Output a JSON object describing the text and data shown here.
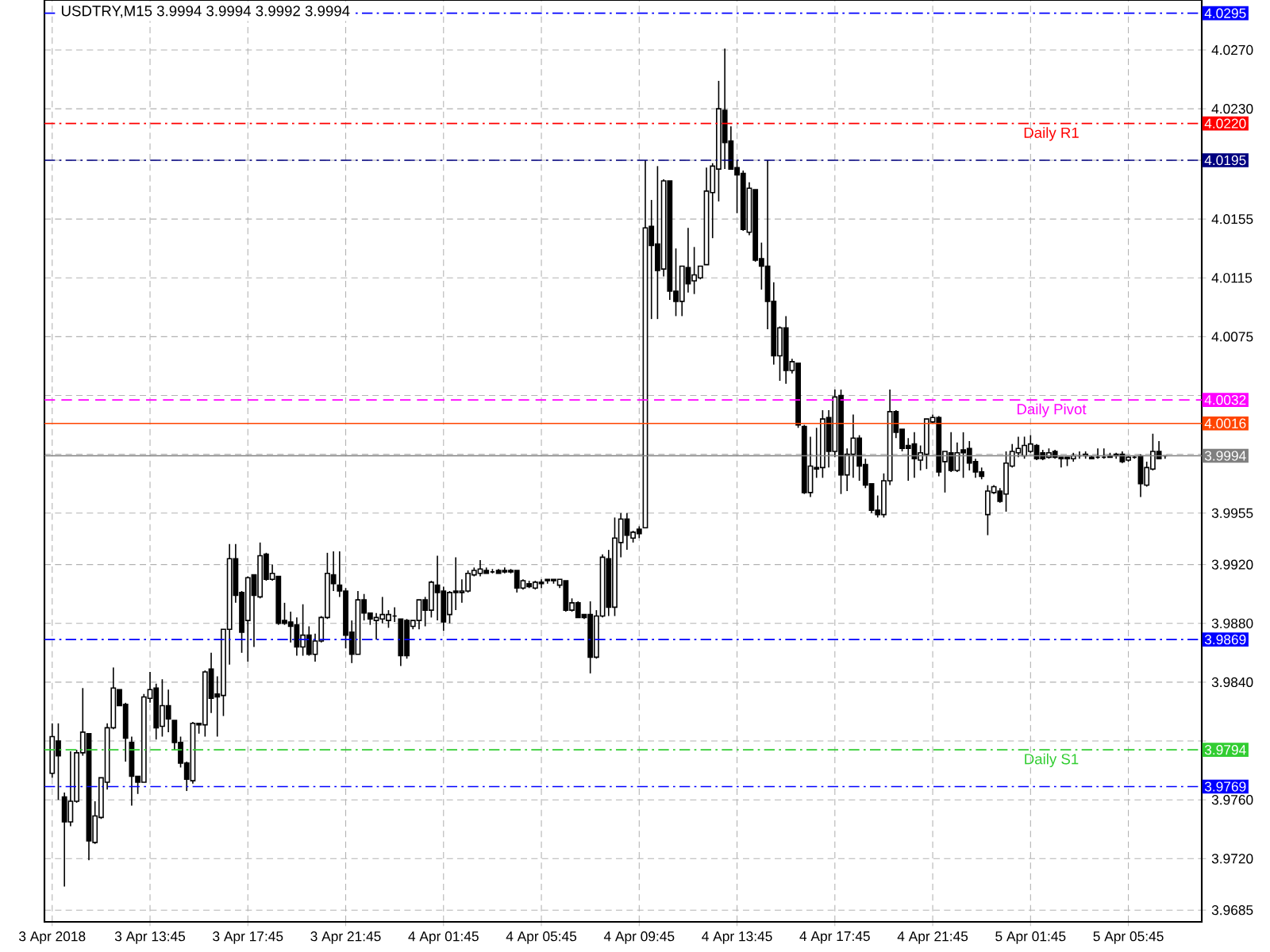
{
  "chart_data": {
    "type": "candlestick",
    "title": "USDTRY,M15  3.9994 3.9994 3.9992 3.9994",
    "x": [
      "2018-04-03T09:45",
      "2018-04-03T10:00",
      "2018-04-03T10:15",
      "2018-04-03T10:30",
      "2018-04-03T10:45",
      "2018-04-03T11:00",
      "2018-04-03T11:15",
      "2018-04-03T11:30",
      "2018-04-03T11:45",
      "2018-04-03T12:00",
      "2018-04-03T12:15",
      "2018-04-03T12:30",
      "2018-04-03T12:45",
      "2018-04-03T13:00",
      "2018-04-03T13:15",
      "2018-04-03T13:30",
      "2018-04-03T13:45",
      "2018-04-03T14:00",
      "2018-04-03T14:15",
      "2018-04-03T14:30",
      "2018-04-03T14:45",
      "2018-04-03T15:00",
      "2018-04-03T15:15",
      "2018-04-03T15:30",
      "2018-04-03T15:45",
      "2018-04-03T16:00",
      "2018-04-03T16:15",
      "2018-04-03T16:30",
      "2018-04-03T16:45",
      "2018-04-03T17:00",
      "2018-04-03T17:15",
      "2018-04-03T17:30",
      "2018-04-03T17:45",
      "2018-04-03T18:00",
      "2018-04-03T18:15",
      "2018-04-03T18:30",
      "2018-04-03T18:45",
      "2018-04-03T19:00",
      "2018-04-03T19:15",
      "2018-04-03T19:30",
      "2018-04-03T19:45",
      "2018-04-03T20:00",
      "2018-04-03T20:15",
      "2018-04-03T20:30",
      "2018-04-03T20:45",
      "2018-04-03T21:00",
      "2018-04-03T21:15",
      "2018-04-03T21:30",
      "2018-04-03T21:45",
      "2018-04-03T22:00",
      "2018-04-03T22:15",
      "2018-04-03T22:30",
      "2018-04-03T22:45",
      "2018-04-03T23:00",
      "2018-04-03T23:15",
      "2018-04-03T23:30",
      "2018-04-03T23:45",
      "2018-04-04T00:00",
      "2018-04-04T00:15",
      "2018-04-04T00:30",
      "2018-04-04T00:45",
      "2018-04-04T01:00",
      "2018-04-04T01:15",
      "2018-04-04T01:30",
      "2018-04-04T01:45",
      "2018-04-04T02:00",
      "2018-04-04T02:15",
      "2018-04-04T02:30",
      "2018-04-04T02:45",
      "2018-04-04T03:00",
      "2018-04-04T03:15",
      "2018-04-04T03:30",
      "2018-04-04T03:45",
      "2018-04-04T04:00",
      "2018-04-04T04:15",
      "2018-04-04T04:30",
      "2018-04-04T04:45",
      "2018-04-04T05:00",
      "2018-04-04T05:15",
      "2018-04-04T05:30",
      "2018-04-04T05:45",
      "2018-04-04T06:00",
      "2018-04-04T06:15",
      "2018-04-04T06:30",
      "2018-04-04T06:45",
      "2018-04-04T07:00",
      "2018-04-04T07:15",
      "2018-04-04T07:30",
      "2018-04-04T07:45",
      "2018-04-04T08:00",
      "2018-04-04T08:15",
      "2018-04-04T08:30",
      "2018-04-04T08:45",
      "2018-04-04T09:00",
      "2018-04-04T09:15",
      "2018-04-04T09:30",
      "2018-04-04T09:45",
      "2018-04-04T10:00",
      "2018-04-04T10:15",
      "2018-04-04T10:30",
      "2018-04-04T10:45",
      "2018-04-04T11:00",
      "2018-04-04T11:15",
      "2018-04-04T11:30",
      "2018-04-04T11:45",
      "2018-04-04T12:00",
      "2018-04-04T12:15",
      "2018-04-04T12:30",
      "2018-04-04T12:45",
      "2018-04-04T13:00",
      "2018-04-04T13:15",
      "2018-04-04T13:30",
      "2018-04-04T13:45",
      "2018-04-04T14:00",
      "2018-04-04T14:15",
      "2018-04-04T14:30",
      "2018-04-04T14:45",
      "2018-04-04T15:00",
      "2018-04-04T15:15",
      "2018-04-04T15:30",
      "2018-04-04T15:45",
      "2018-04-04T16:00",
      "2018-04-04T16:15",
      "2018-04-04T16:30",
      "2018-04-04T16:45",
      "2018-04-04T17:00",
      "2018-04-04T17:15",
      "2018-04-04T17:30",
      "2018-04-04T17:45",
      "2018-04-04T18:00",
      "2018-04-04T18:15",
      "2018-04-04T18:30",
      "2018-04-04T18:45",
      "2018-04-04T19:00",
      "2018-04-04T19:15",
      "2018-04-04T19:30",
      "2018-04-04T19:45",
      "2018-04-04T20:00",
      "2018-04-04T20:15",
      "2018-04-04T20:30",
      "2018-04-04T20:45",
      "2018-04-04T21:00",
      "2018-04-04T21:15",
      "2018-04-04T21:30",
      "2018-04-04T21:45",
      "2018-04-04T22:00",
      "2018-04-04T22:15",
      "2018-04-04T22:30",
      "2018-04-04T22:45",
      "2018-04-04T23:00",
      "2018-04-04T23:15",
      "2018-04-04T23:30",
      "2018-04-04T23:45",
      "2018-04-05T00:00",
      "2018-04-05T00:15",
      "2018-04-05T00:30",
      "2018-04-05T00:45",
      "2018-04-05T01:00",
      "2018-04-05T01:15",
      "2018-04-05T01:30",
      "2018-04-05T01:45",
      "2018-04-05T02:00",
      "2018-04-05T02:15",
      "2018-04-05T02:30",
      "2018-04-05T02:45",
      "2018-04-05T03:00",
      "2018-04-05T03:15",
      "2018-04-05T03:30",
      "2018-04-05T03:45",
      "2018-04-05T04:00",
      "2018-04-05T04:15",
      "2018-04-05T04:30",
      "2018-04-05T04:45",
      "2018-04-05T05:00",
      "2018-04-05T05:15",
      "2018-04-05T05:30",
      "2018-04-05T05:45",
      "2018-04-05T06:00",
      "2018-04-05T06:15",
      "2018-04-05T06:30",
      "2018-04-05T06:45",
      "2018-04-05T07:00",
      "2018-04-05T07:15"
    ],
    "ohlc": [
      [
        3.9778,
        3.9812,
        3.9775,
        3.9803
      ],
      [
        3.98,
        3.9812,
        3.976,
        3.979
      ],
      [
        3.9762,
        3.9765,
        3.9701,
        3.9745
      ],
      [
        3.9745,
        3.9793,
        3.9742,
        3.9759
      ],
      [
        3.9759,
        3.9794,
        3.9758,
        3.9792
      ],
      [
        3.9792,
        3.9836,
        3.979,
        3.9806
      ],
      [
        3.9805,
        3.9805,
        3.9719,
        3.9732
      ],
      [
        3.9731,
        3.9759,
        3.973,
        3.9749
      ],
      [
        3.9748,
        3.9775,
        3.9747,
        3.9775
      ],
      [
        3.9772,
        3.9812,
        3.9767,
        3.9809
      ],
      [
        3.9809,
        3.985,
        3.9808,
        3.9836
      ],
      [
        3.9835,
        3.9835,
        3.9824,
        3.9824
      ],
      [
        3.9825,
        3.9826,
        3.9786,
        3.9802
      ],
      [
        3.9799,
        3.9803,
        3.9756,
        3.9776
      ],
      [
        3.9776,
        3.9776,
        3.9764,
        3.9772
      ],
      [
        3.9772,
        3.9832,
        3.9772,
        3.983
      ],
      [
        3.9829,
        3.9847,
        3.9826,
        3.9835
      ],
      [
        3.9836,
        3.9839,
        3.9801,
        3.9809
      ],
      [
        3.981,
        3.9842,
        3.9803,
        3.9824
      ],
      [
        3.9824,
        3.9835,
        3.9806,
        3.9815
      ],
      [
        3.9814,
        3.9814,
        3.9794,
        3.9799
      ],
      [
        3.9799,
        3.9803,
        3.9782,
        3.9785
      ],
      [
        3.9785,
        3.9786,
        3.9766,
        3.9774
      ],
      [
        3.9773,
        3.9813,
        3.9771,
        3.9812
      ],
      [
        3.9812,
        3.9812,
        3.9805,
        3.9811
      ],
      [
        3.9811,
        3.9848,
        3.9803,
        3.9847
      ],
      [
        3.9849,
        3.986,
        3.9819,
        3.9829
      ],
      [
        3.9832,
        3.9844,
        3.9803,
        3.983
      ],
      [
        3.9831,
        3.9876,
        3.9817,
        3.9876
      ],
      [
        3.9876,
        3.9934,
        3.9852,
        3.9924
      ],
      [
        3.9924,
        3.9934,
        3.9894,
        3.9899
      ],
      [
        3.9901,
        3.9902,
        3.986,
        3.9874
      ],
      [
        3.9882,
        3.9912,
        3.9854,
        3.9911
      ],
      [
        3.9913,
        3.9913,
        3.9864,
        3.9899
      ],
      [
        3.9898,
        3.9935,
        3.9897,
        3.9926
      ],
      [
        3.9927,
        3.9928,
        3.9909,
        3.991
      ],
      [
        3.991,
        3.992,
        3.9909,
        3.9914
      ],
      [
        3.9912,
        3.9912,
        3.9879,
        3.988
      ],
      [
        3.9882,
        3.9894,
        3.9879,
        3.988
      ],
      [
        3.9881,
        3.9888,
        3.9867,
        3.9878
      ],
      [
        3.9879,
        3.9884,
        3.9858,
        3.9864
      ],
      [
        3.9864,
        3.9893,
        3.9858,
        3.9872
      ],
      [
        3.9872,
        3.9878,
        3.9858,
        3.9859
      ],
      [
        3.9859,
        3.9873,
        3.9854,
        3.9868
      ],
      [
        3.9868,
        3.9885,
        3.9867,
        3.9884
      ],
      [
        3.9884,
        3.9928,
        3.9883,
        3.9914
      ],
      [
        3.9913,
        3.9929,
        3.9902,
        3.9907
      ],
      [
        3.9906,
        3.9929,
        3.9898,
        3.9902
      ],
      [
        3.9902,
        3.9904,
        3.9863,
        3.9872
      ],
      [
        3.9874,
        3.9882,
        3.9853,
        3.9859
      ],
      [
        3.9859,
        3.9902,
        3.9859,
        3.9896
      ],
      [
        3.9896,
        3.99,
        3.9882,
        3.9887
      ],
      [
        3.9887,
        3.9887,
        3.9879,
        3.9883
      ],
      [
        3.9882,
        3.9887,
        3.9869,
        3.9884
      ],
      [
        3.9883,
        3.9898,
        3.988,
        3.9886
      ],
      [
        3.9882,
        3.9889,
        3.9877,
        3.9886
      ],
      [
        3.9885,
        3.9891,
        3.9881,
        3.9885
      ],
      [
        3.9883,
        3.9883,
        3.9851,
        3.9858
      ],
      [
        3.9882,
        3.9883,
        3.9856,
        3.9858
      ],
      [
        3.9878,
        3.9882,
        3.9876,
        3.9882
      ],
      [
        3.9882,
        3.9896,
        3.9876,
        3.9896
      ],
      [
        3.9896,
        3.9898,
        3.9878,
        3.9889
      ],
      [
        3.9889,
        3.9909,
        3.9884,
        3.9908
      ],
      [
        3.9906,
        3.9926,
        3.9882,
        3.9901
      ],
      [
        3.9902,
        3.9905,
        3.9875,
        3.9881
      ],
      [
        3.9886,
        3.9902,
        3.988,
        3.9901
      ],
      [
        3.9902,
        3.9925,
        3.9889,
        3.9901
      ],
      [
        3.9901,
        3.991,
        3.9894,
        3.9902
      ],
      [
        3.9902,
        3.9916,
        3.9901,
        3.9914
      ],
      [
        3.9913,
        3.9918,
        3.9912,
        3.9916
      ],
      [
        3.9914,
        3.9923,
        3.9912,
        3.9917
      ],
      [
        3.9916,
        3.9918,
        3.9914,
        3.9914
      ],
      [
        3.9915,
        3.9917,
        3.9914,
        3.9915
      ],
      [
        3.9916,
        3.9917,
        3.9914,
        3.9914
      ],
      [
        3.9916,
        3.9918,
        3.9914,
        3.9915
      ],
      [
        3.9916,
        3.9917,
        3.9914,
        3.9915
      ],
      [
        3.9916,
        3.9916,
        3.9901,
        3.9904
      ],
      [
        3.9904,
        3.991,
        3.9903,
        3.9909
      ],
      [
        3.9907,
        3.9909,
        3.9904,
        3.9905
      ],
      [
        3.9904,
        3.9909,
        3.9903,
        3.9908
      ],
      [
        3.9908,
        3.991,
        3.9904,
        3.9907
      ],
      [
        3.991,
        3.991,
        3.9907,
        3.9909
      ],
      [
        3.991,
        3.991,
        3.9907,
        3.9909
      ],
      [
        3.9906,
        3.991,
        3.9904,
        3.991
      ],
      [
        3.9909,
        3.9909,
        3.9888,
        3.9889
      ],
      [
        3.9889,
        3.9897,
        3.9888,
        3.9894
      ],
      [
        3.9894,
        3.9895,
        3.9884,
        3.9884
      ],
      [
        3.9886,
        3.9886,
        3.9883,
        3.9884
      ],
      [
        3.9886,
        3.9895,
        3.9846,
        3.9857
      ],
      [
        3.9857,
        3.9889,
        3.9856,
        3.9885
      ],
      [
        3.9885,
        3.9927,
        3.9884,
        3.9925
      ],
      [
        3.9924,
        3.993,
        3.9885,
        3.9891
      ],
      [
        3.9891,
        3.9952,
        3.9885,
        3.9938
      ],
      [
        3.9935,
        3.9955,
        3.9925,
        3.9951
      ],
      [
        3.9951,
        3.9955,
        3.993,
        3.994
      ],
      [
        3.9938,
        3.9943,
        3.9935,
        3.9942
      ],
      [
        3.9944,
        3.9946,
        3.9938,
        3.9941
      ],
      [
        3.9945,
        4.0195,
        3.9945,
        4.0149
      ],
      [
        4.015,
        4.0168,
        4.0087,
        4.0137
      ],
      [
        4.0138,
        4.0191,
        4.0087,
        4.012
      ],
      [
        4.0121,
        4.0182,
        4.0116,
        4.0181
      ],
      [
        4.0181,
        4.0181,
        4.01,
        4.0106
      ],
      [
        4.0106,
        4.0135,
        4.0089,
        4.0099
      ],
      [
        4.0099,
        4.0123,
        4.0089,
        4.0123
      ],
      [
        4.0122,
        4.0149,
        4.0105,
        4.0111
      ],
      [
        4.0113,
        4.0136,
        4.0104,
        4.0117
      ],
      [
        4.0115,
        4.0123,
        4.0114,
        4.0123
      ],
      [
        4.0124,
        4.019,
        4.0124,
        4.0174
      ],
      [
        4.0173,
        4.0193,
        4.0142,
        4.0191
      ],
      [
        4.0189,
        4.0249,
        4.0167,
        4.023
      ],
      [
        4.0229,
        4.0271,
        4.0189,
        4.0207
      ],
      [
        4.0208,
        4.0218,
        4.0189,
        4.0189
      ],
      [
        4.019,
        4.0195,
        4.0159,
        4.0185
      ],
      [
        4.0186,
        4.0188,
        4.0147,
        4.0148
      ],
      [
        4.0146,
        4.018,
        4.0144,
        4.0176
      ],
      [
        4.0175,
        4.0175,
        4.0126,
        4.0127
      ],
      [
        4.0128,
        4.0139,
        4.0107,
        4.0123
      ],
      [
        4.0123,
        4.0195,
        4.008,
        4.0099
      ],
      [
        4.0099,
        4.0112,
        4.0056,
        4.0062
      ],
      [
        4.0062,
        4.0082,
        4.0045,
        4.0081
      ],
      [
        4.0081,
        4.0089,
        4.0043,
        4.0052
      ],
      [
        4.0052,
        4.006,
        4.005,
        4.0058
      ],
      [
        4.0057,
        4.0057,
        4.0013,
        4.0015
      ],
      [
        4.0014,
        4.0015,
        3.9968,
        3.9969
      ],
      [
        3.9969,
        4.0007,
        3.9966,
        3.9987
      ],
      [
        3.9986,
        4.0013,
        3.9979,
        3.9985
      ],
      [
        3.9986,
        4.0025,
        3.9979,
        4.0019
      ],
      [
        4.002,
        4.0025,
        3.9986,
        3.9997
      ],
      [
        3.9997,
        4.0039,
        3.9993,
        4.0034
      ],
      [
        4.0035,
        4.0039,
        3.9968,
        3.9981
      ],
      [
        3.9981,
        3.9999,
        3.997,
        3.9995
      ],
      [
        3.9995,
        4.0022,
        3.9979,
        4.0006
      ],
      [
        4.0006,
        4.0008,
        3.9977,
        3.9987
      ],
      [
        3.9988,
        3.9992,
        3.9972,
        3.9974
      ],
      [
        3.9975,
        3.9975,
        3.9955,
        3.9957
      ],
      [
        3.9957,
        3.9967,
        3.9952,
        3.9954
      ],
      [
        3.9954,
        3.9982,
        3.9952,
        3.9977
      ],
      [
        3.9977,
        4.0039,
        3.9974,
        4.0024
      ],
      [
        4.0024,
        4.0025,
        4.0006,
        4.001
      ],
      [
        4.0012,
        4.0012,
        3.9997,
        3.9999
      ],
      [
        4.0001,
        4.0006,
        3.9977,
        3.9999
      ],
      [
        4.0002,
        4.001,
        3.9979,
        3.9992
      ],
      [
        3.9991,
        4.0001,
        3.9984,
        3.9996
      ],
      [
        3.9995,
        4.0019,
        3.9985,
        4.0019
      ],
      [
        4.0017,
        4.0022,
        4.0016,
        4.002
      ],
      [
        4.002,
        4.0021,
        3.998,
        3.9983
      ],
      [
        3.999,
        3.9997,
        3.9969,
        3.9997
      ],
      [
        3.9996,
        4.001,
        3.9983,
        3.9984
      ],
      [
        3.9984,
        4.0003,
        3.9983,
        3.9996
      ],
      [
        3.9998,
        4.001,
        3.9979,
        3.9996
      ],
      [
        3.9999,
        4.0004,
        3.9984,
        3.9989
      ],
      [
        3.999,
        3.9992,
        3.9979,
        3.9983
      ],
      [
        3.9983,
        3.9986,
        3.9978,
        3.998
      ],
      [
        3.9954,
        3.9974,
        3.994,
        3.997
      ],
      [
        3.9969,
        3.9974,
        3.9968,
        3.9973
      ],
      [
        3.997,
        3.9972,
        3.9962,
        3.9963
      ],
      [
        3.9968,
        3.9997,
        3.9956,
        3.9989
      ],
      [
        3.9987,
        4.0002,
        3.9986,
        3.9997
      ],
      [
        3.9996,
        4.0007,
        3.9993,
        3.9999
      ],
      [
        3.9994,
        4.0007,
        3.9992,
        4.0001
      ],
      [
        3.9997,
        4.0008,
        3.9996,
        4.0002
      ],
      [
        4.0001,
        4.0002,
        3.9991,
        3.9992
      ],
      [
        3.9996,
        3.9998,
        3.9991,
        3.9992
      ],
      [
        3.9993,
        3.9999,
        3.9992,
        3.9996
      ],
      [
        3.9997,
        3.9998,
        3.9992,
        3.9993
      ],
      [
        3.9993,
        3.9993,
        3.9986,
        3.9992
      ],
      [
        3.9993,
        3.9993,
        3.9987,
        3.9992
      ],
      [
        3.9992,
        3.9996,
        3.999,
        3.9994
      ],
      [
        3.9994,
        3.9997,
        3.9992,
        3.9994
      ],
      [
        3.9994,
        3.9997,
        3.9992,
        3.9995
      ],
      [
        3.9993,
        3.9994,
        3.9992,
        3.9992
      ],
      [
        3.9993,
        3.9999,
        3.9992,
        3.9993
      ],
      [
        3.9993,
        3.9999,
        3.9992,
        3.9993
      ],
      [
        3.9994,
        3.9996,
        3.9993,
        3.9993
      ],
      [
        3.9995,
        3.9996,
        3.9992,
        3.9994
      ],
      [
        3.9995,
        3.9997,
        3.9989,
        3.999
      ],
      [
        3.9991,
        3.9994,
        3.999,
        3.9993
      ],
      [
        3.9993,
        3.9994,
        3.9992,
        3.9993
      ],
      [
        3.9994,
        3.9995,
        3.9966,
        3.9975
      ],
      [
        3.9974,
        3.999,
        3.9973,
        3.9986
      ],
      [
        3.9985,
        4.0009,
        3.9984,
        3.9997
      ],
      [
        3.9997,
        4.0004,
        3.9992,
        3.9992
      ],
      [
        3.9994,
        3.9994,
        3.9992,
        3.9994
      ]
    ],
    "xlim": [
      "2018-04-03T09:26",
      "2018-04-05T08:45"
    ],
    "ylim": [
      3.9677,
      4.0304
    ],
    "xticks": [
      {
        "value": "2018-04-03T09:45",
        "label": "3 Apr 2018"
      },
      {
        "value": "2018-04-03T13:45",
        "label": "3 Apr 13:45"
      },
      {
        "value": "2018-04-03T17:45",
        "label": "3 Apr 17:45"
      },
      {
        "value": "2018-04-03T21:45",
        "label": "3 Apr 21:45"
      },
      {
        "value": "2018-04-04T01:45",
        "label": "4 Apr 01:45"
      },
      {
        "value": "2018-04-04T05:45",
        "label": "4 Apr 05:45"
      },
      {
        "value": "2018-04-04T09:45",
        "label": "4 Apr 09:45"
      },
      {
        "value": "2018-04-04T13:45",
        "label": "4 Apr 13:45"
      },
      {
        "value": "2018-04-04T17:45",
        "label": "4 Apr 17:45"
      },
      {
        "value": "2018-04-04T21:45",
        "label": "4 Apr 21:45"
      },
      {
        "value": "2018-04-05T01:45",
        "label": "5 Apr 01:45"
      },
      {
        "value": "2018-04-05T05:45",
        "label": "5 Apr 05:45"
      }
    ],
    "yticks": [
      {
        "value": 3.9685,
        "label": "3.9685"
      },
      {
        "value": 3.972,
        "label": "3.9720"
      },
      {
        "value": 3.976,
        "label": "3.9760"
      },
      {
        "value": 3.98,
        "label": null
      },
      {
        "value": 3.984,
        "label": "3.9840"
      },
      {
        "value": 3.988,
        "label": "3.9880"
      },
      {
        "value": 3.992,
        "label": "3.9920"
      },
      {
        "value": 3.9955,
        "label": "3.9955"
      },
      {
        "value": 3.9995,
        "label": null
      },
      {
        "value": 4.0035,
        "label": null
      },
      {
        "value": 4.0075,
        "label": "4.0075"
      },
      {
        "value": 4.0115,
        "label": "4.0115"
      },
      {
        "value": 4.0155,
        "label": "4.0155"
      },
      {
        "value": 4.0195,
        "label": null
      },
      {
        "value": 4.023,
        "label": "4.0230"
      },
      {
        "value": 4.027,
        "label": "4.0270"
      }
    ],
    "grid": true,
    "ref_lines": [
      {
        "axis": "y",
        "value": 4.0295,
        "label": "4.0295",
        "color": "#0000ff",
        "line_style": "dashdot"
      },
      {
        "axis": "y",
        "value": 4.022,
        "label": "4.0220",
        "color": "#ff0000",
        "line_style": "dashdot"
      },
      {
        "axis": "y",
        "value": 4.0195,
        "label": "4.0195",
        "color": "#000080",
        "line_style": "dashdot"
      },
      {
        "axis": "y",
        "value": 4.0032,
        "label": "4.0032",
        "color": "#ff00ff",
        "line_style": "dashed"
      },
      {
        "axis": "y",
        "value": 4.0016,
        "label": "4.0016",
        "color": "#ff4500",
        "line_style": "solid"
      },
      {
        "axis": "y",
        "value": 3.9994,
        "label": "3.9994",
        "color": "#808080",
        "line_style": "solid"
      },
      {
        "axis": "y",
        "value": 3.9869,
        "label": "3.9869",
        "color": "#0000ff",
        "line_style": "dashdot"
      },
      {
        "axis": "y",
        "value": 3.9794,
        "label": "3.9794",
        "color": "#32cd32",
        "line_style": "dashdot"
      },
      {
        "axis": "y",
        "value": 3.9769,
        "label": "3.9769",
        "color": "#0000ff",
        "line_style": "dashdot"
      }
    ],
    "annotations": [
      {
        "text": "Daily R1",
        "x": "2018-04-05T02:36",
        "y": 4.022
      },
      {
        "text": "Daily Pivot",
        "x": "2018-04-05T02:36",
        "y": 4.0032
      },
      {
        "text": "Daily S1",
        "x": "2018-04-05T02:36",
        "y": 3.9794
      }
    ]
  }
}
